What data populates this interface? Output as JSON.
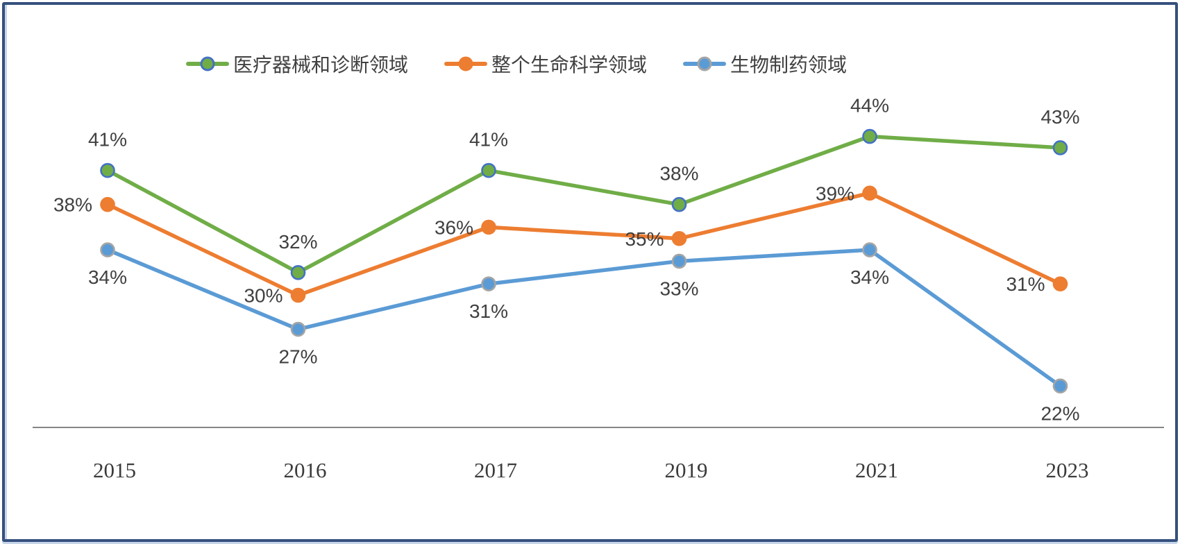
{
  "chart": {
    "background": "#ffffff",
    "frame_border_color": "#35507e",
    "frame_accent_color": "#c6d5ea",
    "axis_line_color": "#868686",
    "label_text_color": "#404040"
  },
  "chart_data": {
    "type": "line",
    "title": "",
    "xlabel": "",
    "ylabel": "",
    "grid": false,
    "legend_position": "top",
    "data_labels": true,
    "unit": "%",
    "categories": [
      "2015",
      "2016",
      "2017",
      "2019",
      "2021",
      "2023"
    ],
    "series": [
      {
        "name": "医疗器械和诊断领域",
        "color": "#70AD47",
        "marker_fill": "#70AD47",
        "marker_border": "#4472C4",
        "values": [
          41,
          32,
          41,
          38,
          44,
          43
        ],
        "labels": [
          "41%",
          "32%",
          "41%",
          "38%",
          "44%",
          "43%"
        ],
        "label_position": "above"
      },
      {
        "name": "整个生命科学领域",
        "color": "#ED7D31",
        "marker_fill": "#ED7D31",
        "marker_border": "#ED7D31",
        "values": [
          38,
          30,
          36,
          35,
          39,
          31
        ],
        "labels": [
          "38%",
          "30%",
          "36%",
          "35%",
          "39%",
          "31%"
        ],
        "label_position": "left"
      },
      {
        "name": "生物制药领域",
        "color": "#5B9BD5",
        "marker_fill": "#5B9BD5",
        "marker_border": "#A5A5A5",
        "values": [
          34,
          27,
          31,
          33,
          34,
          22
        ],
        "labels": [
          "34%",
          "27%",
          "31%",
          "33%",
          "34%",
          "22%"
        ],
        "label_position": "below"
      }
    ],
    "ylim_estimate": [
      15,
      50
    ]
  }
}
